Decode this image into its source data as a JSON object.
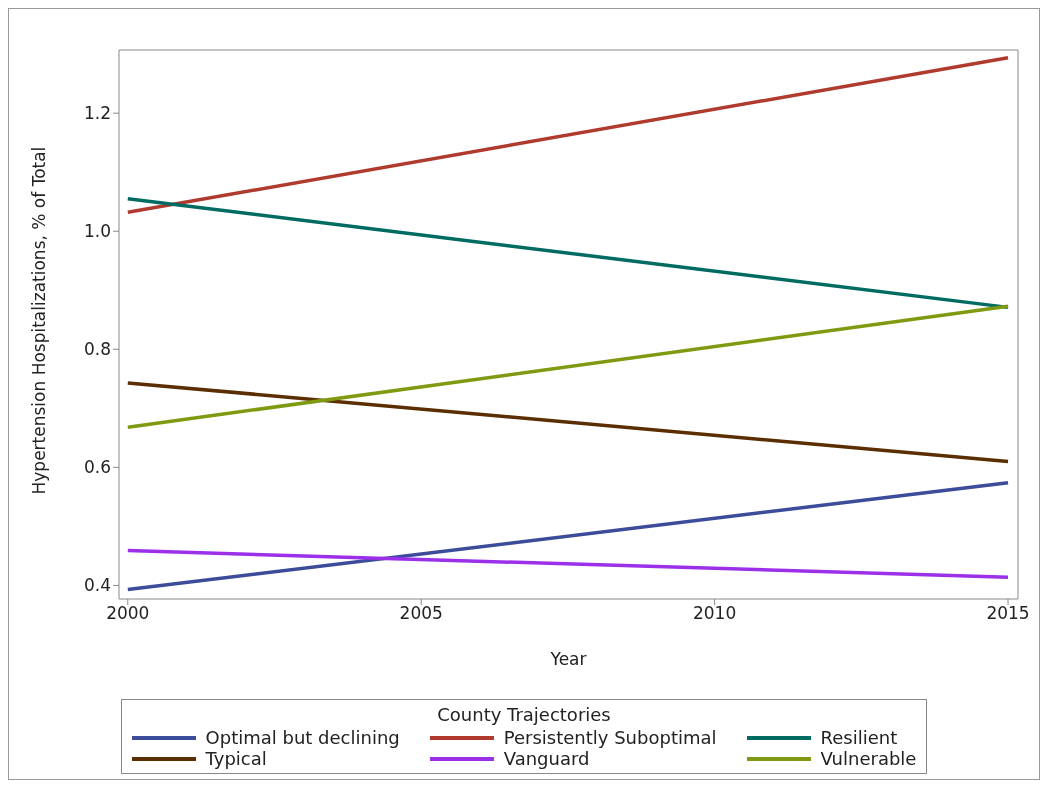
{
  "chart_data": {
    "type": "line",
    "xlabel": "Year",
    "ylabel": "Hypertension Hospitalizations, % of Total",
    "legend_title": "County Trajectories",
    "legend": "bottom",
    "grid": false,
    "marker": "none",
    "line_style": "solid",
    "x": [
      2000,
      2015
    ],
    "xlim": [
      1999.85,
      2015.17
    ],
    "xticks": [
      2000,
      2005,
      2010,
      2015
    ],
    "ylim": [
      0.377,
      1.307
    ],
    "yticks": [
      {
        "value": 0.4,
        "label": "0.4"
      },
      {
        "value": 0.6,
        "label": "0.6"
      },
      {
        "value": 0.8,
        "label": "0.8"
      },
      {
        "value": 1.0,
        "label": "1.0"
      },
      {
        "value": 1.2,
        "label": "1.2"
      }
    ],
    "series": [
      {
        "name": "Optimal but declining",
        "color": "#3c4b9a",
        "values": [
          0.393,
          0.574
        ]
      },
      {
        "name": "Persistently Suboptimal",
        "color": "#b03a2e",
        "values": [
          1.032,
          1.294
        ]
      },
      {
        "name": "Resilient",
        "color": "#006b60",
        "values": [
          1.055,
          0.871
        ]
      },
      {
        "name": "Typical",
        "color": "#5a2e00",
        "values": [
          0.743,
          0.61
        ]
      },
      {
        "name": "Vanguard",
        "color": "#9b30e8",
        "values": [
          0.459,
          0.414
        ]
      },
      {
        "name": "Vulnerable",
        "color": "#7f9a10",
        "values": [
          0.668,
          0.873
        ]
      }
    ]
  }
}
